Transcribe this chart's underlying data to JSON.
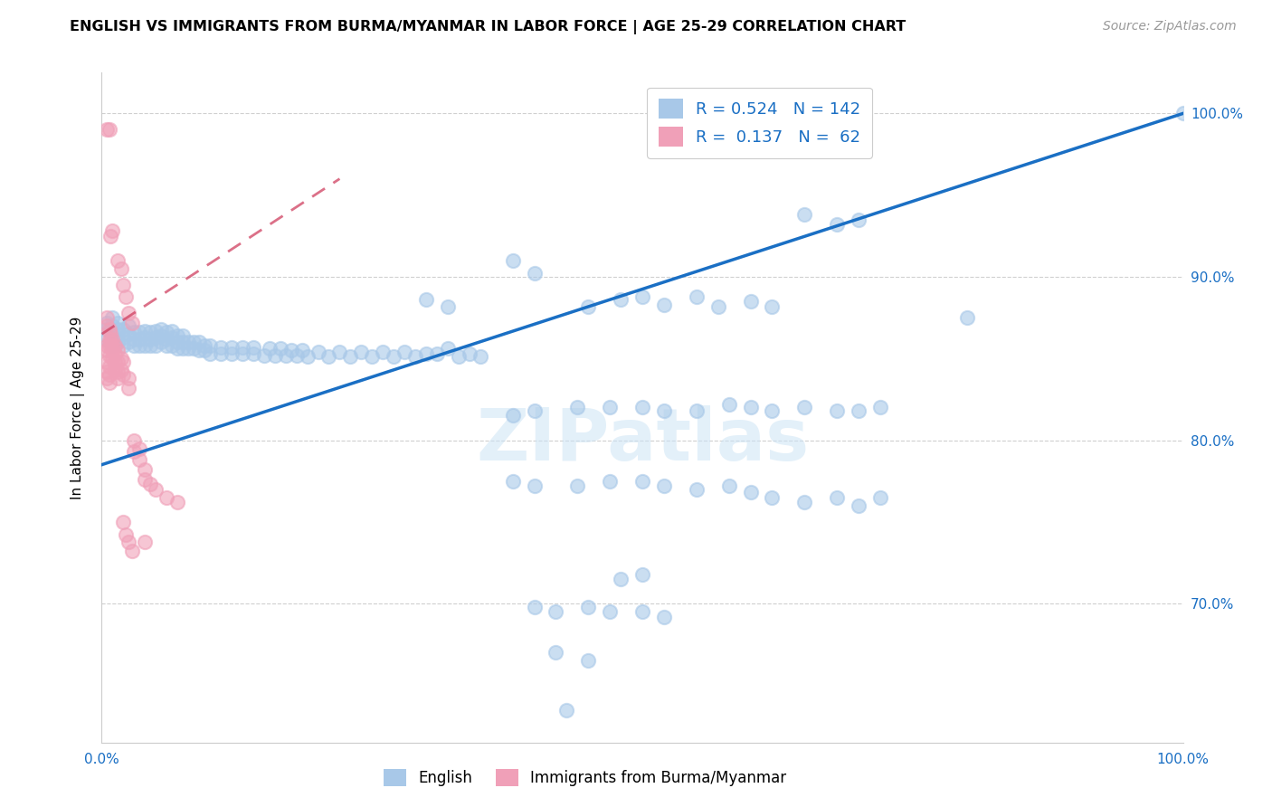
{
  "title": "ENGLISH VS IMMIGRANTS FROM BURMA/MYANMAR IN LABOR FORCE | AGE 25-29 CORRELATION CHART",
  "source": "Source: ZipAtlas.com",
  "ylabel": "In Labor Force | Age 25-29",
  "xlim": [
    0.0,
    1.0
  ],
  "ylim": [
    0.615,
    1.025
  ],
  "ytick_labels": [
    "70.0%",
    "80.0%",
    "90.0%",
    "100.0%"
  ],
  "ytick_values": [
    0.7,
    0.8,
    0.9,
    1.0
  ],
  "legend_english_R": "0.524",
  "legend_english_N": "142",
  "legend_immigrant_R": "0.137",
  "legend_immigrant_N": "62",
  "english_color": "#a8c8e8",
  "immigrant_color": "#f0a0b8",
  "trendline_english_color": "#1a6fc4",
  "trendline_immigrant_color": "#d04060",
  "trendline_english_x0": 0.0,
  "trendline_english_y0": 0.785,
  "trendline_english_x1": 1.0,
  "trendline_english_y1": 1.0,
  "trendline_immigrant_x0": 0.0,
  "trendline_immigrant_y0": 0.865,
  "trendline_immigrant_x1": 0.22,
  "trendline_immigrant_y1": 0.96,
  "english_scatter": [
    [
      0.005,
      0.862
    ],
    [
      0.005,
      0.868
    ],
    [
      0.005,
      0.872
    ],
    [
      0.01,
      0.858
    ],
    [
      0.01,
      0.865
    ],
    [
      0.01,
      0.87
    ],
    [
      0.01,
      0.875
    ],
    [
      0.015,
      0.86
    ],
    [
      0.015,
      0.865
    ],
    [
      0.015,
      0.868
    ],
    [
      0.015,
      0.872
    ],
    [
      0.02,
      0.858
    ],
    [
      0.02,
      0.863
    ],
    [
      0.02,
      0.868
    ],
    [
      0.025,
      0.86
    ],
    [
      0.025,
      0.865
    ],
    [
      0.025,
      0.87
    ],
    [
      0.03,
      0.858
    ],
    [
      0.03,
      0.862
    ],
    [
      0.03,
      0.866
    ],
    [
      0.035,
      0.858
    ],
    [
      0.035,
      0.862
    ],
    [
      0.035,
      0.866
    ],
    [
      0.04,
      0.858
    ],
    [
      0.04,
      0.863
    ],
    [
      0.04,
      0.867
    ],
    [
      0.045,
      0.858
    ],
    [
      0.045,
      0.862
    ],
    [
      0.045,
      0.866
    ],
    [
      0.05,
      0.858
    ],
    [
      0.05,
      0.863
    ],
    [
      0.05,
      0.867
    ],
    [
      0.055,
      0.86
    ],
    [
      0.055,
      0.864
    ],
    [
      0.055,
      0.868
    ],
    [
      0.06,
      0.858
    ],
    [
      0.06,
      0.862
    ],
    [
      0.06,
      0.866
    ],
    [
      0.065,
      0.858
    ],
    [
      0.065,
      0.863
    ],
    [
      0.065,
      0.867
    ],
    [
      0.07,
      0.856
    ],
    [
      0.07,
      0.86
    ],
    [
      0.07,
      0.864
    ],
    [
      0.075,
      0.856
    ],
    [
      0.075,
      0.86
    ],
    [
      0.075,
      0.864
    ],
    [
      0.08,
      0.856
    ],
    [
      0.08,
      0.86
    ],
    [
      0.085,
      0.856
    ],
    [
      0.085,
      0.86
    ],
    [
      0.09,
      0.855
    ],
    [
      0.09,
      0.86
    ],
    [
      0.095,
      0.855
    ],
    [
      0.095,
      0.858
    ],
    [
      0.1,
      0.853
    ],
    [
      0.1,
      0.858
    ],
    [
      0.11,
      0.853
    ],
    [
      0.11,
      0.857
    ],
    [
      0.12,
      0.853
    ],
    [
      0.12,
      0.857
    ],
    [
      0.13,
      0.853
    ],
    [
      0.13,
      0.857
    ],
    [
      0.14,
      0.853
    ],
    [
      0.14,
      0.857
    ],
    [
      0.15,
      0.852
    ],
    [
      0.155,
      0.856
    ],
    [
      0.16,
      0.852
    ],
    [
      0.165,
      0.856
    ],
    [
      0.17,
      0.852
    ],
    [
      0.175,
      0.855
    ],
    [
      0.18,
      0.852
    ],
    [
      0.185,
      0.855
    ],
    [
      0.19,
      0.851
    ],
    [
      0.2,
      0.854
    ],
    [
      0.21,
      0.851
    ],
    [
      0.22,
      0.854
    ],
    [
      0.23,
      0.851
    ],
    [
      0.24,
      0.854
    ],
    [
      0.25,
      0.851
    ],
    [
      0.26,
      0.854
    ],
    [
      0.27,
      0.851
    ],
    [
      0.28,
      0.854
    ],
    [
      0.29,
      0.851
    ],
    [
      0.3,
      0.853
    ],
    [
      0.31,
      0.853
    ],
    [
      0.32,
      0.856
    ],
    [
      0.33,
      0.851
    ],
    [
      0.34,
      0.853
    ],
    [
      0.35,
      0.851
    ],
    [
      0.3,
      0.886
    ],
    [
      0.32,
      0.882
    ],
    [
      0.38,
      0.91
    ],
    [
      0.4,
      0.902
    ],
    [
      0.45,
      0.882
    ],
    [
      0.48,
      0.886
    ],
    [
      0.5,
      0.888
    ],
    [
      0.52,
      0.883
    ],
    [
      0.55,
      0.888
    ],
    [
      0.57,
      0.882
    ],
    [
      0.6,
      0.885
    ],
    [
      0.62,
      0.882
    ],
    [
      0.65,
      0.938
    ],
    [
      0.68,
      0.932
    ],
    [
      0.7,
      0.935
    ],
    [
      0.38,
      0.815
    ],
    [
      0.4,
      0.818
    ],
    [
      0.44,
      0.82
    ],
    [
      0.47,
      0.82
    ],
    [
      0.5,
      0.82
    ],
    [
      0.52,
      0.818
    ],
    [
      0.55,
      0.818
    ],
    [
      0.58,
      0.822
    ],
    [
      0.6,
      0.82
    ],
    [
      0.62,
      0.818
    ],
    [
      0.65,
      0.82
    ],
    [
      0.68,
      0.818
    ],
    [
      0.7,
      0.818
    ],
    [
      0.72,
      0.82
    ],
    [
      0.8,
      0.875
    ],
    [
      0.38,
      0.775
    ],
    [
      0.4,
      0.772
    ],
    [
      0.44,
      0.772
    ],
    [
      0.47,
      0.775
    ],
    [
      0.5,
      0.775
    ],
    [
      0.52,
      0.772
    ],
    [
      0.55,
      0.77
    ],
    [
      0.58,
      0.772
    ],
    [
      0.6,
      0.768
    ],
    [
      0.62,
      0.765
    ],
    [
      0.65,
      0.762
    ],
    [
      0.68,
      0.765
    ],
    [
      0.7,
      0.76
    ],
    [
      0.72,
      0.765
    ],
    [
      0.4,
      0.698
    ],
    [
      0.42,
      0.695
    ],
    [
      0.45,
      0.698
    ],
    [
      0.47,
      0.695
    ],
    [
      0.5,
      0.695
    ],
    [
      0.52,
      0.692
    ],
    [
      0.42,
      0.67
    ],
    [
      0.45,
      0.665
    ],
    [
      0.43,
      0.635
    ],
    [
      0.48,
      0.715
    ],
    [
      0.5,
      0.718
    ],
    [
      1.0,
      1.0
    ]
  ],
  "immigrant_scatter": [
    [
      0.005,
      0.99
    ],
    [
      0.007,
      0.99
    ],
    [
      0.005,
      0.87
    ],
    [
      0.007,
      0.868
    ],
    [
      0.005,
      0.875
    ],
    [
      0.005,
      0.858
    ],
    [
      0.007,
      0.862
    ],
    [
      0.007,
      0.858
    ],
    [
      0.005,
      0.855
    ],
    [
      0.007,
      0.852
    ],
    [
      0.005,
      0.848
    ],
    [
      0.007,
      0.845
    ],
    [
      0.005,
      0.842
    ],
    [
      0.007,
      0.84
    ],
    [
      0.005,
      0.838
    ],
    [
      0.007,
      0.835
    ],
    [
      0.008,
      0.865
    ],
    [
      0.008,
      0.86
    ],
    [
      0.01,
      0.862
    ],
    [
      0.01,
      0.858
    ],
    [
      0.01,
      0.855
    ],
    [
      0.01,
      0.85
    ],
    [
      0.012,
      0.858
    ],
    [
      0.012,
      0.853
    ],
    [
      0.012,
      0.848
    ],
    [
      0.012,
      0.843
    ],
    [
      0.015,
      0.855
    ],
    [
      0.015,
      0.848
    ],
    [
      0.015,
      0.842
    ],
    [
      0.015,
      0.838
    ],
    [
      0.018,
      0.85
    ],
    [
      0.018,
      0.843
    ],
    [
      0.02,
      0.848
    ],
    [
      0.02,
      0.84
    ],
    [
      0.025,
      0.838
    ],
    [
      0.025,
      0.832
    ],
    [
      0.03,
      0.8
    ],
    [
      0.03,
      0.793
    ],
    [
      0.035,
      0.795
    ],
    [
      0.035,
      0.788
    ],
    [
      0.04,
      0.782
    ],
    [
      0.04,
      0.776
    ],
    [
      0.045,
      0.773
    ],
    [
      0.05,
      0.77
    ],
    [
      0.06,
      0.765
    ],
    [
      0.07,
      0.762
    ],
    [
      0.008,
      0.925
    ],
    [
      0.01,
      0.928
    ],
    [
      0.015,
      0.91
    ],
    [
      0.018,
      0.905
    ],
    [
      0.02,
      0.895
    ],
    [
      0.022,
      0.888
    ],
    [
      0.025,
      0.878
    ],
    [
      0.028,
      0.872
    ],
    [
      0.02,
      0.75
    ],
    [
      0.022,
      0.742
    ],
    [
      0.025,
      0.738
    ],
    [
      0.028,
      0.732
    ],
    [
      0.04,
      0.738
    ]
  ]
}
